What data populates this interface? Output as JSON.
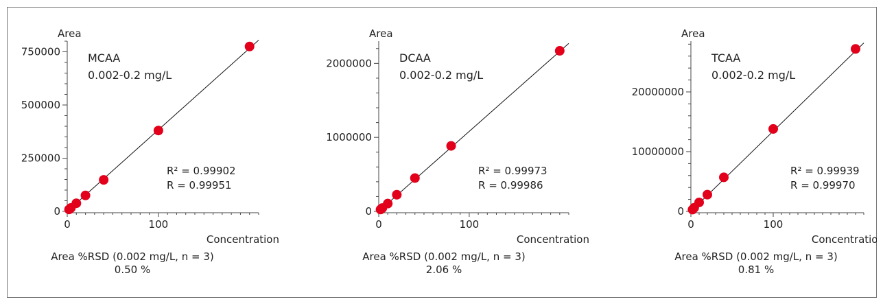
{
  "chart_data": [
    {
      "type": "scatter",
      "compound": "MCAA",
      "range_label": "0.002-0.2 mg/L",
      "ylabel": "Area",
      "xlabel": "Concentration",
      "xlim": [
        0,
        210
      ],
      "ylim": [
        0,
        800000
      ],
      "xticks": [
        0,
        100
      ],
      "yticks": [
        0,
        250000,
        500000,
        750000
      ],
      "ytick_labels": [
        "0",
        "250000",
        "500000",
        "750000"
      ],
      "r2_text": "R² = 0.99902",
      "r_text": "R  = 0.99951",
      "fit_end": [
        210,
        805000
      ],
      "x": [
        2,
        4,
        10,
        20,
        40,
        100,
        200
      ],
      "y": [
        9000,
        16000,
        38000,
        75000,
        148000,
        380000,
        775000
      ],
      "rsd_label": "Area %RSD (0.002 mg/L, n = 3)",
      "rsd_value": "0.50 %",
      "color": "#e3001b"
    },
    {
      "type": "scatter",
      "compound": "DCAA",
      "range_label": "0.002-0.2 mg/L",
      "ylabel": "Area",
      "xlabel": "Concentration",
      "xlim": [
        0,
        210
      ],
      "ylim": [
        0,
        2300000
      ],
      "xticks": [
        0,
        100
      ],
      "yticks": [
        0,
        1000000,
        2000000
      ],
      "ytick_labels": [
        "0",
        "1000000",
        "2000000"
      ],
      "r2_text": "R² = 0.99973",
      "r_text": "R  = 0.99986",
      "fit_end": [
        210,
        2270000
      ],
      "x": [
        2,
        4,
        10,
        20,
        40,
        80,
        200
      ],
      "y": [
        25000,
        45000,
        105000,
        225000,
        450000,
        885000,
        2170000
      ],
      "rsd_label": "Area %RSD (0.002 mg/L, n = 3)",
      "rsd_value": "2.06 %",
      "color": "#e3001b"
    },
    {
      "type": "scatter",
      "compound": "TCAA",
      "range_label": "0.002-0.2 mg/L",
      "ylabel": "Area",
      "xlabel": "Concentration",
      "xlim": [
        0,
        210
      ],
      "ylim": [
        0,
        28500000
      ],
      "xticks": [
        0,
        100
      ],
      "yticks": [
        0,
        10000000,
        20000000
      ],
      "ytick_labels": [
        "0",
        "10000000",
        "20000000"
      ],
      "r2_text": "R² = 0.99939",
      "r_text": "R  = 0.99970",
      "fit_end": [
        210,
        28200000
      ],
      "x": [
        2,
        4,
        10,
        20,
        40,
        100,
        200
      ],
      "y": [
        300000,
        600000,
        1500000,
        2800000,
        5700000,
        13800000,
        27200000
      ],
      "rsd_label": "Area %RSD (0.002 mg/L, n = 3)",
      "rsd_value": "0.81 %",
      "color": "#e3001b"
    }
  ]
}
